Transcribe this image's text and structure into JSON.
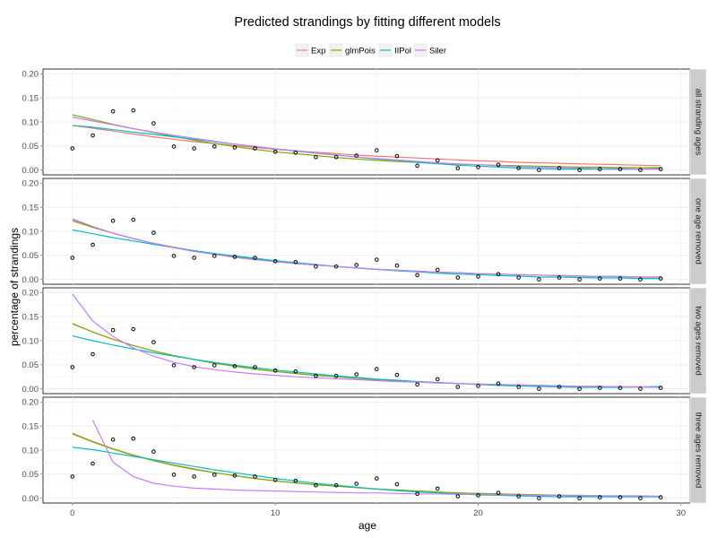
{
  "chart_data": {
    "type": "line",
    "title": "Predicted strandings by fitting different models",
    "xlabel": "age",
    "ylabel": "percentage of strandings",
    "xlim": [
      -1.45,
      30.45
    ],
    "ylim": [
      -0.01,
      0.21
    ],
    "x_ticks": [
      0,
      10,
      20,
      30
    ],
    "y_ticks": [
      0.0,
      0.05,
      0.1,
      0.15,
      0.2
    ],
    "y_tick_labels": [
      "0.00",
      "0.05",
      "0.10",
      "0.15",
      "0.20"
    ],
    "grid": true,
    "legend_position": "top",
    "legend": [
      {
        "name": "Exp",
        "color": "#F8766D"
      },
      {
        "name": "glmPois",
        "color": "#7CAE00"
      },
      {
        "name": "IIPol",
        "color": "#00BFC4"
      },
      {
        "name": "Siler",
        "color": "#C77CFF"
      }
    ],
    "x": [
      0,
      1,
      2,
      3,
      4,
      5,
      6,
      7,
      8,
      9,
      10,
      11,
      12,
      13,
      14,
      15,
      16,
      17,
      18,
      19,
      20,
      21,
      22,
      23,
      24,
      25,
      26,
      27,
      28,
      29
    ],
    "panels": [
      {
        "label": "all stranding ages",
        "observed": [
          0.045,
          0.072,
          0.122,
          0.124,
          0.097,
          0.049,
          0.045,
          0.049,
          0.047,
          0.045,
          0.038,
          0.036,
          0.027,
          0.027,
          0.03,
          0.041,
          0.029,
          0.009,
          0.02,
          0.004,
          0.006,
          0.011,
          0.004,
          0.0,
          0.004,
          0.0,
          0.002,
          0.002,
          0.0,
          0.002
        ],
        "series": [
          {
            "name": "Exp",
            "values": [
              0.093,
              0.087,
              0.081,
              0.075,
              0.069,
              0.064,
              0.059,
              0.055,
              0.051,
              0.047,
              0.043,
              0.04,
              0.037,
              0.034,
              0.031,
              0.029,
              0.027,
              0.025,
              0.023,
              0.021,
              0.019,
              0.018,
              0.016,
              0.015,
              0.014,
              0.013,
              0.012,
              0.011,
              0.01,
              0.009
            ]
          },
          {
            "name": "glmPois",
            "values": [
              0.115,
              0.105,
              0.095,
              0.086,
              0.078,
              0.07,
              0.062,
              0.055,
              0.049,
              0.043,
              0.038,
              0.034,
              0.03,
              0.026,
              0.023,
              0.02,
              0.018,
              0.016,
              0.014,
              0.012,
              0.011,
              0.01,
              0.009,
              0.008,
              0.007,
              0.006,
              0.006,
              0.005,
              0.005,
              0.005
            ]
          },
          {
            "name": "IIPol",
            "values": [
              0.093,
              0.089,
              0.084,
              0.079,
              0.074,
              0.069,
              0.064,
              0.059,
              0.054,
              0.049,
              0.044,
              0.04,
              0.035,
              0.031,
              0.027,
              0.023,
              0.02,
              0.016,
              0.013,
              0.01,
              0.008,
              0.006,
              0.004,
              0.003,
              0.002,
              0.002,
              0.002,
              0.002,
              0.002,
              0.003
            ]
          },
          {
            "name": "Siler",
            "values": [
              0.11,
              0.102,
              0.094,
              0.086,
              0.079,
              0.072,
              0.066,
              0.06,
              0.054,
              0.049,
              0.044,
              0.039,
              0.035,
              0.031,
              0.027,
              0.024,
              0.021,
              0.018,
              0.015,
              0.013,
              0.011,
              0.009,
              0.007,
              0.006,
              0.005,
              0.004,
              0.003,
              0.003,
              0.002,
              0.002
            ]
          }
        ]
      },
      {
        "label": "one age removed",
        "observed": [
          0.045,
          0.072,
          0.122,
          0.124,
          0.097,
          0.049,
          0.045,
          0.049,
          0.047,
          0.045,
          0.038,
          0.036,
          0.027,
          0.027,
          0.03,
          0.041,
          0.029,
          0.009,
          0.02,
          0.004,
          0.006,
          0.011,
          0.004,
          0.0,
          0.004,
          0.0,
          0.002,
          0.002,
          0.0,
          0.002
        ],
        "series": [
          {
            "name": "Exp",
            "values": [
              0.125,
              0.109,
              0.096,
              0.085,
              0.075,
              0.067,
              0.059,
              0.053,
              0.047,
              0.042,
              0.037,
              0.033,
              0.03,
              0.027,
              0.024,
              0.021,
              0.019,
              0.017,
              0.015,
              0.014,
              0.012,
              0.011,
              0.01,
              0.009,
              0.008,
              0.007,
              0.006,
              0.006,
              0.005,
              0.005
            ]
          },
          {
            "name": "glmPois",
            "values": [
              0.122,
              0.108,
              0.096,
              0.085,
              0.075,
              0.067,
              0.059,
              0.053,
              0.047,
              0.042,
              0.037,
              0.033,
              0.03,
              0.027,
              0.024,
              0.021,
              0.019,
              0.017,
              0.015,
              0.014,
              0.012,
              0.011,
              0.01,
              0.009,
              0.008,
              0.007,
              0.006,
              0.006,
              0.005,
              0.005
            ]
          },
          {
            "name": "IIPol",
            "values": [
              0.103,
              0.095,
              0.087,
              0.08,
              0.073,
              0.066,
              0.06,
              0.054,
              0.049,
              0.044,
              0.039,
              0.035,
              0.031,
              0.027,
              0.024,
              0.021,
              0.018,
              0.016,
              0.013,
              0.011,
              0.01,
              0.008,
              0.007,
              0.005,
              0.005,
              0.004,
              0.003,
              0.003,
              0.002,
              0.002
            ]
          },
          {
            "name": "Siler",
            "values": [
              0.126,
              0.11,
              0.096,
              0.085,
              0.075,
              0.066,
              0.058,
              0.052,
              0.046,
              0.041,
              0.037,
              0.033,
              0.03,
              0.027,
              0.024,
              0.021,
              0.019,
              0.017,
              0.015,
              0.014,
              0.012,
              0.011,
              0.01,
              0.009,
              0.008,
              0.007,
              0.006,
              0.006,
              0.005,
              0.005
            ]
          }
        ]
      },
      {
        "label": "two ages removed",
        "observed": [
          0.045,
          0.072,
          0.122,
          0.124,
          0.097,
          0.049,
          0.045,
          0.049,
          0.047,
          0.045,
          0.038,
          0.036,
          0.027,
          0.027,
          0.03,
          0.041,
          0.029,
          0.009,
          0.02,
          0.004,
          0.006,
          0.011,
          0.004,
          0.0,
          0.004,
          0.0,
          0.002,
          0.002,
          0.0,
          0.002
        ],
        "series": [
          {
            "name": "Exp",
            "values": [
              0.136,
              0.118,
              0.103,
              0.09,
              0.079,
              0.069,
              0.061,
              0.053,
              0.047,
              0.041,
              0.036,
              0.032,
              0.028,
              0.025,
              0.022,
              0.019,
              0.017,
              0.015,
              0.013,
              0.011,
              0.01,
              0.009,
              0.008,
              0.007,
              0.006,
              0.005,
              0.005,
              0.004,
              0.004,
              0.003
            ]
          },
          {
            "name": "glmPois",
            "values": [
              0.135,
              0.118,
              0.103,
              0.09,
              0.079,
              0.069,
              0.061,
              0.053,
              0.047,
              0.041,
              0.036,
              0.032,
              0.028,
              0.025,
              0.022,
              0.019,
              0.017,
              0.015,
              0.013,
              0.011,
              0.01,
              0.009,
              0.008,
              0.007,
              0.006,
              0.005,
              0.005,
              0.004,
              0.004,
              0.003
            ]
          },
          {
            "name": "IIPol",
            "values": [
              0.11,
              0.1,
              0.091,
              0.083,
              0.075,
              0.068,
              0.061,
              0.055,
              0.049,
              0.044,
              0.039,
              0.035,
              0.031,
              0.027,
              0.024,
              0.02,
              0.018,
              0.015,
              0.013,
              0.011,
              0.009,
              0.007,
              0.006,
              0.005,
              0.004,
              0.003,
              0.003,
              0.003,
              0.004,
              0.005
            ]
          },
          {
            "name": "Siler",
            "values": [
              0.197,
              0.141,
              0.109,
              0.085,
              0.068,
              0.055,
              0.046,
              0.04,
              0.035,
              0.031,
              0.028,
              0.025,
              0.023,
              0.021,
              0.019,
              0.017,
              0.015,
              0.014,
              0.012,
              0.011,
              0.01,
              0.009,
              0.008,
              0.007,
              0.006,
              0.005,
              0.005,
              0.004,
              0.004,
              0.003
            ]
          }
        ]
      },
      {
        "label": "three ages removed",
        "observed": [
          0.045,
          0.072,
          0.122,
          0.124,
          0.097,
          0.049,
          0.045,
          0.049,
          0.047,
          0.045,
          0.038,
          0.036,
          0.027,
          0.027,
          0.03,
          0.041,
          0.029,
          0.009,
          0.02,
          0.004,
          0.006,
          0.011,
          0.004,
          0.0,
          0.004,
          0.0,
          0.002,
          0.002,
          0.0,
          0.002
        ],
        "series": [
          {
            "name": "Exp",
            "values": [
              0.135,
              0.118,
              0.103,
              0.09,
              0.079,
              0.069,
              0.061,
              0.053,
              0.047,
              0.041,
              0.036,
              0.032,
              0.028,
              0.025,
              0.022,
              0.019,
              0.017,
              0.015,
              0.013,
              0.011,
              0.01,
              0.009,
              0.008,
              0.007,
              0.006,
              0.005,
              0.005,
              0.004,
              0.004,
              0.003
            ]
          },
          {
            "name": "glmPois",
            "values": [
              0.134,
              0.117,
              0.102,
              0.089,
              0.078,
              0.068,
              0.06,
              0.053,
              0.047,
              0.041,
              0.036,
              0.032,
              0.028,
              0.025,
              0.022,
              0.019,
              0.017,
              0.015,
              0.013,
              0.011,
              0.01,
              0.009,
              0.008,
              0.007,
              0.006,
              0.005,
              0.005,
              0.004,
              0.004,
              0.003
            ]
          },
          {
            "name": "IIPol",
            "values": [
              0.106,
              0.101,
              0.094,
              0.087,
              0.08,
              0.073,
              0.066,
              0.059,
              0.053,
              0.047,
              0.041,
              0.036,
              0.031,
              0.027,
              0.023,
              0.019,
              0.016,
              0.013,
              0.011,
              0.009,
              0.007,
              0.006,
              0.005,
              0.004,
              0.003,
              0.003,
              0.003,
              0.003,
              0.003,
              0.003
            ]
          },
          {
            "name": "Siler",
            "values": [
              null,
              0.162,
              0.075,
              0.045,
              0.031,
              0.025,
              0.021,
              0.019,
              0.017,
              0.016,
              0.015,
              0.014,
              0.013,
              0.012,
              0.011,
              0.011,
              0.01,
              0.009,
              0.009,
              0.008,
              0.008,
              0.007,
              0.007,
              0.006,
              0.006,
              0.006,
              0.005,
              0.005,
              0.005,
              0.004
            ]
          }
        ]
      }
    ]
  }
}
